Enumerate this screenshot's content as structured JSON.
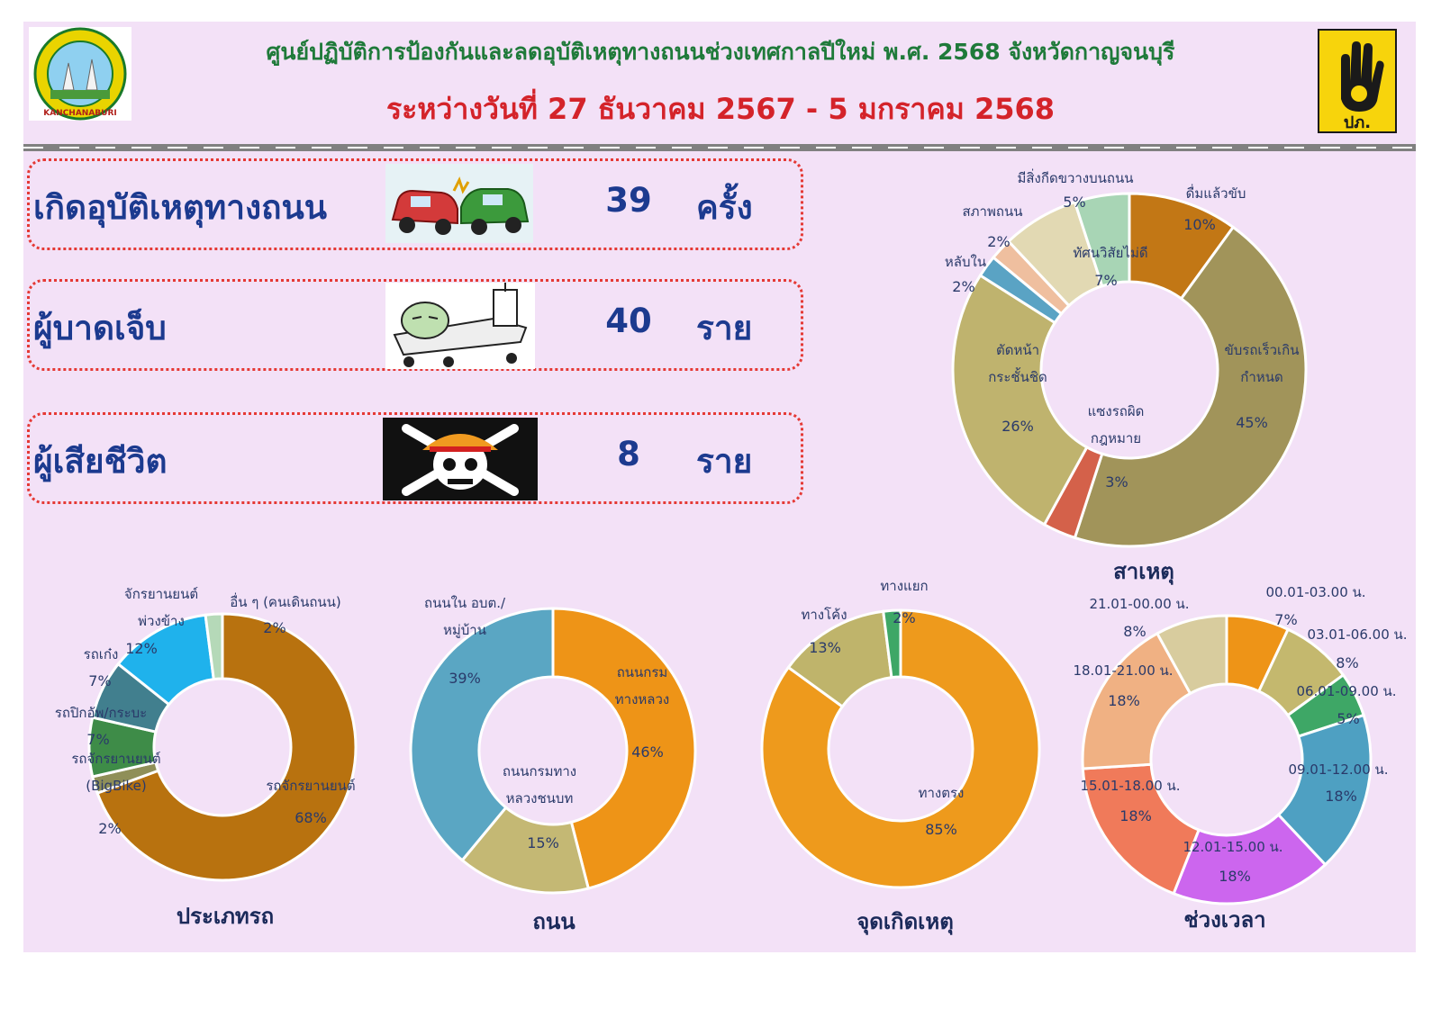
{
  "header": {
    "title": "ศูนย์ปฏิบัติการป้องกันและลดอุบัติเหตุทางถนนช่วงเทศกาลปีใหม่ พ.ศ. 2568 จังหวัดกาญจนบุรี",
    "subtitle": "ระหว่างวันที่ 27 ธันวาคม 2567 - 5 มกราคม 2568",
    "logo_left_text": "KANCHANABURI",
    "logo_right_text": "ปภ."
  },
  "stats": [
    {
      "label": "เกิดอุบัติเหตุทางถนน",
      "value": "39",
      "unit": "ครั้ง",
      "icon": "car-crash-icon"
    },
    {
      "label": "ผู้บาดเจ็บ",
      "value": "40",
      "unit": "ราย",
      "icon": "injured-patient-icon"
    },
    {
      "label": "ผู้เสียชีวิต",
      "value": "8",
      "unit": "ราย",
      "icon": "skull-crossbones-icon"
    }
  ],
  "chart_data": [
    {
      "type": "pie",
      "title": "สาเหตุ",
      "slices": [
        {
          "label": "ดื่มแล้วขับ",
          "value": 10,
          "text": "10%",
          "color": "#c27715"
        },
        {
          "label": "ขับรถเร็วเกินกำหนด",
          "value": 45,
          "text": "45%",
          "color": "#a1945a"
        },
        {
          "label": "แซงรถผิดกฎหมาย",
          "value": 3,
          "text": "3%",
          "color": "#d4614a"
        },
        {
          "label": "ตัดหน้ากระชั้นชิด",
          "value": 26,
          "text": "26%",
          "color": "#bfb36e"
        },
        {
          "label": "หลับใน",
          "value": 2,
          "text": "2%",
          "color": "#5aa3c4"
        },
        {
          "label": "สภาพถนน",
          "value": 2,
          "text": "2%",
          "color": "#efbf9f"
        },
        {
          "label": "ทัศนวิสัยไม่ดี",
          "value": 7,
          "text": "7%",
          "color": "#e2d9b3"
        },
        {
          "label": "มีสิ่งกีดขวางบนถนน",
          "value": 5,
          "text": "5%",
          "color": "#a8d5b5"
        }
      ]
    },
    {
      "type": "pie",
      "title": "ประเภทรถ",
      "slices": [
        {
          "label": "รถจักรยานยนต์",
          "value": 68,
          "text": "68%",
          "color": "#b8720f"
        },
        {
          "label": "รถจักรยานยนต์ (BigBike)",
          "value": 2,
          "text": "2%",
          "color": "#8f8f58"
        },
        {
          "label": "รถปิกอัพ/กระบะ",
          "value": 7,
          "text": "7%",
          "color": "#3e8c48"
        },
        {
          "label": "รถเก๋ง",
          "value": 7,
          "text": "7%",
          "color": "#417f8e"
        },
        {
          "label": "จักรยานยนต์พ่วงข้าง",
          "value": 12,
          "text": "12%",
          "color": "#1fb2ec"
        },
        {
          "label": "อื่น ๆ (คนเดินถนน)",
          "value": 2,
          "text": "2%",
          "color": "#b5d9b8"
        }
      ]
    },
    {
      "type": "pie",
      "title": "ถนน",
      "slices": [
        {
          "label": "ถนนกรมทางหลวง",
          "value": 46,
          "text": "46%",
          "color": "#ee9417"
        },
        {
          "label": "ถนนกรมทางหลวงชนบท",
          "value": 15,
          "text": "15%",
          "color": "#c4b874"
        },
        {
          "label": "ถนนใน อบต./หมู่บ้าน",
          "value": 39,
          "text": "39%",
          "color": "#5aa6c3"
        }
      ]
    },
    {
      "type": "pie",
      "title": "จุดเกิดเหตุ",
      "slices": [
        {
          "label": "ทางตรง",
          "value": 85,
          "text": "85%",
          "color": "#ee9a1c"
        },
        {
          "label": "ทางโค้ง",
          "value": 13,
          "text": "13%",
          "color": "#bfb46b"
        },
        {
          "label": "ทางแยก",
          "value": 2,
          "text": "2%",
          "color": "#3ea766"
        }
      ]
    },
    {
      "type": "pie",
      "title": "ช่วงเวลา",
      "slices": [
        {
          "label": "00.01-03.00 น.",
          "value": 7,
          "text": "7%",
          "color": "#ee9417"
        },
        {
          "label": "03.01-06.00 น.",
          "value": 8,
          "text": "8%",
          "color": "#c4b86e"
        },
        {
          "label": "06.01-09.00 น.",
          "value": 5,
          "text": "5%",
          "color": "#3ea766"
        },
        {
          "label": "09.01-12.00 น.",
          "value": 18,
          "text": "18%",
          "color": "#4ea0c2"
        },
        {
          "label": "12.01-15.00 น.",
          "value": 18,
          "text": "18%",
          "color": "#cc66ee"
        },
        {
          "label": "15.01-18.00 น.",
          "value": 18,
          "text": "18%",
          "color": "#f07a5a"
        },
        {
          "label": "18.01-21.00 น.",
          "value": 18,
          "text": "18%",
          "color": "#f0b183"
        },
        {
          "label": "21.01-00.00 น.",
          "value": 8,
          "text": "8%",
          "color": "#d8cc9e"
        }
      ]
    }
  ]
}
